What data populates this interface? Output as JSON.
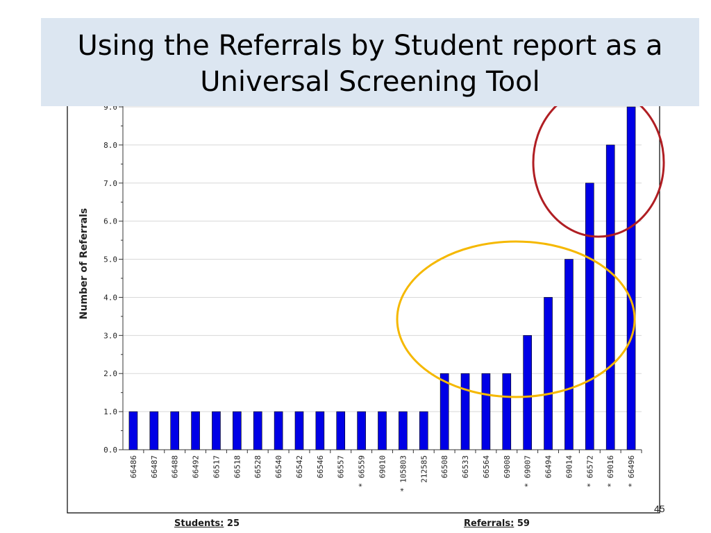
{
  "slide": {
    "title_line1": "Using the Referrals by Student report as a",
    "title_line2": "Universal Screening Tool",
    "page_number": "45"
  },
  "footer": {
    "students_label": "Students:",
    "students_value": "25",
    "referrals_label": "Referrals:",
    "referrals_value": "59"
  },
  "colors": {
    "bar": "#0000e6",
    "bar_outline": "#000000",
    "title_bg": "#dce6f1",
    "red_circle": "#b01e23",
    "yellow_circle": "#f5b800",
    "grid": "#d8d8d8"
  },
  "highlights": [
    {
      "name": "yellow-highlight-circle",
      "color": "#f5b800",
      "covers": [
        "66508",
        "66533",
        "66564",
        "69008",
        "* 69007",
        "66494",
        "69014",
        "* 66572"
      ]
    },
    {
      "name": "red-highlight-circle",
      "color": "#b01e23",
      "covers": [
        "* 66572",
        "* 69016",
        "* 66496"
      ]
    }
  ],
  "chart_data": {
    "type": "bar",
    "title": "",
    "xlabel": "",
    "ylabel": "Number of Referrals",
    "ylim": [
      0,
      9
    ],
    "yticks": [
      "0.0",
      "1.0",
      "2.0",
      "3.0",
      "4.0",
      "5.0",
      "6.0",
      "7.0",
      "8.0",
      "9.0"
    ],
    "grid": true,
    "legend": "none",
    "categories": [
      "66486",
      "66487",
      "66488",
      "66492",
      "66517",
      "66518",
      "66528",
      "66540",
      "66542",
      "66546",
      "66557",
      "* 66559",
      "69010",
      "* 105803",
      "212585",
      "66508",
      "66533",
      "66564",
      "69008",
      "* 69007",
      "66494",
      "69014",
      "* 66572",
      "* 69016",
      "* 66496"
    ],
    "values": [
      1,
      1,
      1,
      1,
      1,
      1,
      1,
      1,
      1,
      1,
      1,
      1,
      1,
      1,
      1,
      2,
      2,
      2,
      2,
      3,
      4,
      5,
      7,
      8,
      9
    ]
  }
}
